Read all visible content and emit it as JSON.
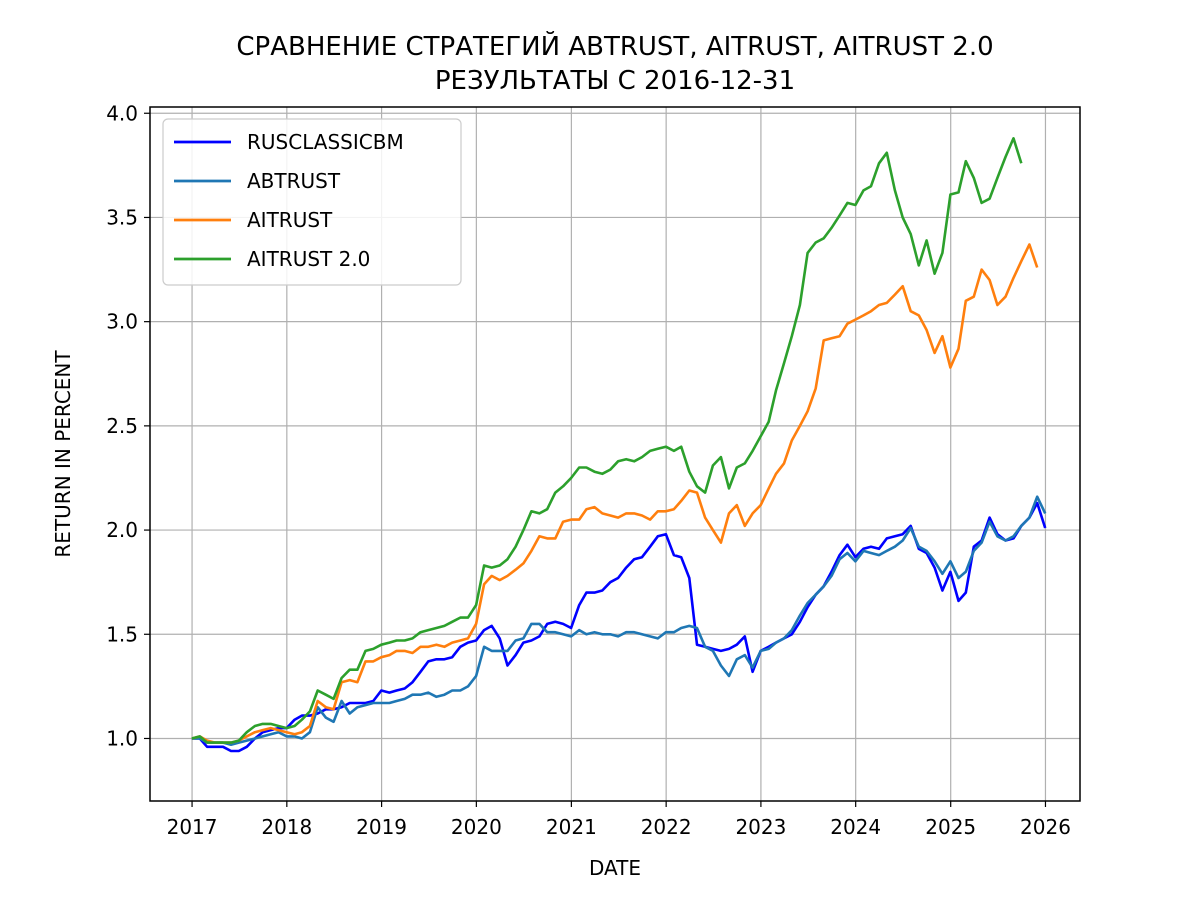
{
  "chart_data": {
    "type": "line",
    "title": "СРАВНЕНИЕ СТРАТЕГИЙ ABTRUST, AITRUST, AITRUST 2.0",
    "subtitle": "РЕЗУЛЬТАТЫ С 2016-12-31",
    "xlabel": "DATE",
    "ylabel": "RETURN IN PERCENT",
    "xlim": [
      "2016-07-23",
      "2026-05-14"
    ],
    "ylim": [
      0.7,
      4.03
    ],
    "x_ticks": [
      "2017",
      "2018",
      "2019",
      "2020",
      "2021",
      "2022",
      "2023",
      "2024",
      "2025",
      "2026"
    ],
    "y_ticks": [
      "1.0",
      "1.5",
      "2.0",
      "2.5",
      "3.0",
      "3.5",
      "4.0"
    ],
    "grid": true,
    "legend_position": "top-left",
    "x_start": "2016-12",
    "x_step": "monthly",
    "series": [
      {
        "name": "RUSCLASSICBM",
        "color": "#0000ff",
        "values": [
          1.0,
          1.0,
          0.96,
          0.96,
          0.96,
          0.94,
          0.94,
          0.96,
          1.0,
          1.03,
          1.04,
          1.05,
          1.05,
          1.09,
          1.11,
          1.11,
          1.12,
          1.14,
          1.14,
          1.15,
          1.17,
          1.17,
          1.17,
          1.18,
          1.23,
          1.22,
          1.23,
          1.24,
          1.27,
          1.32,
          1.37,
          1.38,
          1.38,
          1.39,
          1.44,
          1.46,
          1.47,
          1.52,
          1.54,
          1.48,
          1.35,
          1.4,
          1.46,
          1.47,
          1.49,
          1.55,
          1.56,
          1.55,
          1.53,
          1.64,
          1.7,
          1.7,
          1.71,
          1.75,
          1.77,
          1.82,
          1.86,
          1.87,
          1.92,
          1.97,
          1.98,
          1.88,
          1.87,
          1.77,
          1.45,
          1.44,
          1.43,
          1.42,
          1.43,
          1.45,
          1.49,
          1.32,
          1.42,
          1.44,
          1.46,
          1.48,
          1.5,
          1.56,
          1.63,
          1.69,
          1.73,
          1.8,
          1.88,
          1.93,
          1.87,
          1.91,
          1.92,
          1.91,
          1.96,
          1.97,
          1.98,
          2.02,
          1.91,
          1.89,
          1.82,
          1.71,
          1.8,
          1.66,
          1.7,
          1.92,
          1.95,
          2.06,
          1.98,
          1.95,
          1.96,
          2.02,
          2.06,
          2.13,
          2.01
        ]
      },
      {
        "name": "ABTRUST",
        "color": "#1f77b4",
        "values": [
          1.0,
          1.0,
          0.98,
          0.98,
          0.98,
          0.97,
          0.98,
          0.99,
          1.0,
          1.01,
          1.02,
          1.03,
          1.01,
          1.01,
          1.0,
          1.03,
          1.15,
          1.1,
          1.08,
          1.18,
          1.12,
          1.15,
          1.16,
          1.17,
          1.17,
          1.17,
          1.18,
          1.19,
          1.21,
          1.21,
          1.22,
          1.2,
          1.21,
          1.23,
          1.23,
          1.25,
          1.3,
          1.44,
          1.42,
          1.42,
          1.42,
          1.47,
          1.48,
          1.55,
          1.55,
          1.51,
          1.51,
          1.5,
          1.49,
          1.52,
          1.5,
          1.51,
          1.5,
          1.5,
          1.49,
          1.51,
          1.51,
          1.5,
          1.49,
          1.48,
          1.51,
          1.51,
          1.53,
          1.54,
          1.53,
          1.44,
          1.42,
          1.35,
          1.3,
          1.38,
          1.4,
          1.34,
          1.42,
          1.43,
          1.46,
          1.48,
          1.52,
          1.59,
          1.65,
          1.69,
          1.73,
          1.78,
          1.86,
          1.89,
          1.85,
          1.9,
          1.89,
          1.88,
          1.9,
          1.92,
          1.95,
          2.01,
          1.92,
          1.9,
          1.85,
          1.79,
          1.85,
          1.77,
          1.8,
          1.9,
          1.94,
          2.04,
          1.97,
          1.95,
          1.97,
          2.02,
          2.06,
          2.16,
          2.08
        ]
      },
      {
        "name": "AITRUST",
        "color": "#ff7f0e",
        "values": [
          1.0,
          1.01,
          0.99,
          0.98,
          0.98,
          0.98,
          0.99,
          1.01,
          1.03,
          1.04,
          1.05,
          1.04,
          1.03,
          1.02,
          1.03,
          1.06,
          1.18,
          1.15,
          1.14,
          1.27,
          1.28,
          1.27,
          1.37,
          1.37,
          1.39,
          1.4,
          1.42,
          1.42,
          1.41,
          1.44,
          1.44,
          1.45,
          1.44,
          1.46,
          1.47,
          1.48,
          1.55,
          1.74,
          1.78,
          1.76,
          1.78,
          1.81,
          1.84,
          1.9,
          1.97,
          1.96,
          1.96,
          2.04,
          2.05,
          2.05,
          2.1,
          2.11,
          2.08,
          2.07,
          2.06,
          2.08,
          2.08,
          2.07,
          2.05,
          2.09,
          2.09,
          2.1,
          2.14,
          2.19,
          2.18,
          2.06,
          2.0,
          1.94,
          2.08,
          2.12,
          2.02,
          2.08,
          2.12,
          2.2,
          2.27,
          2.32,
          2.43,
          2.5,
          2.57,
          2.68,
          2.91,
          2.92,
          2.93,
          2.99,
          3.01,
          3.03,
          3.05,
          3.08,
          3.09,
          3.13,
          3.17,
          3.05,
          3.03,
          2.96,
          2.85,
          2.93,
          2.78,
          2.87,
          3.1,
          3.12,
          3.25,
          3.2,
          3.08,
          3.12,
          3.21,
          3.29,
          3.37,
          3.26
        ]
      },
      {
        "name": "AITRUST 2.0",
        "color": "#2ca02c",
        "values": [
          1.0,
          1.01,
          0.98,
          0.98,
          0.98,
          0.98,
          0.99,
          1.03,
          1.06,
          1.07,
          1.07,
          1.06,
          1.05,
          1.06,
          1.09,
          1.13,
          1.23,
          1.21,
          1.19,
          1.29,
          1.33,
          1.33,
          1.42,
          1.43,
          1.45,
          1.46,
          1.47,
          1.47,
          1.48,
          1.51,
          1.52,
          1.53,
          1.54,
          1.56,
          1.58,
          1.58,
          1.64,
          1.83,
          1.82,
          1.83,
          1.86,
          1.92,
          2.0,
          2.09,
          2.08,
          2.1,
          2.18,
          2.21,
          2.25,
          2.3,
          2.3,
          2.28,
          2.27,
          2.29,
          2.33,
          2.34,
          2.33,
          2.35,
          2.38,
          2.39,
          2.4,
          2.38,
          2.4,
          2.28,
          2.21,
          2.18,
          2.31,
          2.35,
          2.2,
          2.3,
          2.32,
          2.38,
          2.45,
          2.52,
          2.67,
          2.8,
          2.93,
          3.08,
          3.33,
          3.38,
          3.4,
          3.45,
          3.51,
          3.57,
          3.56,
          3.63,
          3.65,
          3.76,
          3.81,
          3.63,
          3.5,
          3.42,
          3.27,
          3.39,
          3.23,
          3.33,
          3.61,
          3.62,
          3.77,
          3.69,
          3.57,
          3.59,
          3.69,
          3.79,
          3.88,
          3.76
        ]
      }
    ]
  }
}
